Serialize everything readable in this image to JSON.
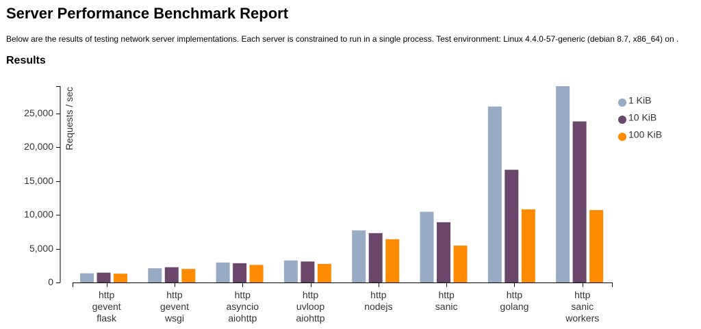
{
  "page": {
    "title": "Server Performance Benchmark Report",
    "intro": "Below are the results of testing network server implementations. Each server is constrained to run in a single process. Test environment: Linux 4.4.0-57-generic (debian 8.7, x86_64) on .",
    "results_heading": "Results"
  },
  "chart_data": {
    "type": "bar",
    "title": "",
    "xlabel": "",
    "ylabel": "Requests / sec",
    "ylim": [
      0,
      29000
    ],
    "yticks": [
      0,
      5000,
      10000,
      15000,
      20000,
      25000
    ],
    "ytick_labels": [
      "0",
      "5,000",
      "10,000",
      "15,000",
      "20,000",
      "25,000"
    ],
    "grid": false,
    "legend_position": "top-right",
    "categories": [
      [
        "http",
        "gevent",
        "flask"
      ],
      [
        "http",
        "gevent",
        "wsgi"
      ],
      [
        "http",
        "asyncio",
        "aiohttp"
      ],
      [
        "http",
        "uvloop",
        "aiohttp"
      ],
      [
        "http",
        "nodejs"
      ],
      [
        "http",
        "sanic"
      ],
      [
        "http",
        "golang"
      ],
      [
        "http",
        "sanic",
        "workers"
      ]
    ],
    "series": [
      {
        "name": "1 KiB",
        "color": "#98abc5",
        "values": [
          1350,
          2100,
          2950,
          3250,
          7700,
          10450,
          26000,
          29000
        ]
      },
      {
        "name": "10 KiB",
        "color": "#6b486b",
        "values": [
          1450,
          2250,
          2850,
          3100,
          7300,
          8900,
          16650,
          23800
        ]
      },
      {
        "name": "100 KiB",
        "color": "#ff8c00",
        "values": [
          1300,
          2000,
          2600,
          2750,
          6400,
          5450,
          10800,
          10700
        ]
      }
    ]
  }
}
